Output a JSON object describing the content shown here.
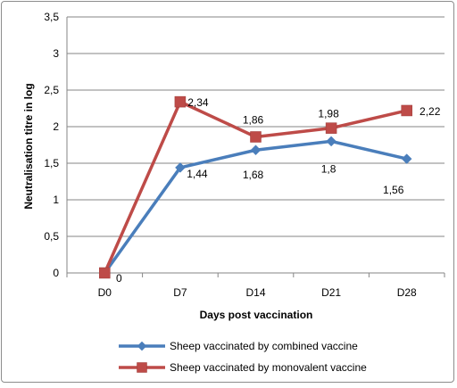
{
  "chart_data": {
    "type": "line",
    "title": "",
    "xlabel": "Days post vaccination",
    "ylabel": "Neutralisation titre in log",
    "categories": [
      "D0",
      "D7",
      "D14",
      "D21",
      "D28"
    ],
    "ylim": [
      0,
      3.5
    ],
    "yticks": [
      "0",
      "0,5",
      "1",
      "1,5",
      "2",
      "2,5",
      "3",
      "3,5"
    ],
    "grid": true,
    "legend_position": "bottom",
    "series": [
      {
        "name": "Sheep vaccinated by combined vaccine",
        "values": [
          0,
          1.44,
          1.68,
          1.8,
          1.56
        ],
        "labels": [
          "",
          "1,44",
          "1,68",
          "1,8",
          "1,56"
        ],
        "color": "#4a7ebb",
        "marker": "diamond"
      },
      {
        "name": "Sheep vaccinated by monovalent vaccine",
        "values": [
          0,
          2.34,
          1.86,
          1.98,
          2.22
        ],
        "labels": [
          "0",
          "2,34",
          "1,86",
          "1,98",
          "2,22"
        ],
        "color": "#be4b48",
        "marker": "square"
      }
    ]
  }
}
